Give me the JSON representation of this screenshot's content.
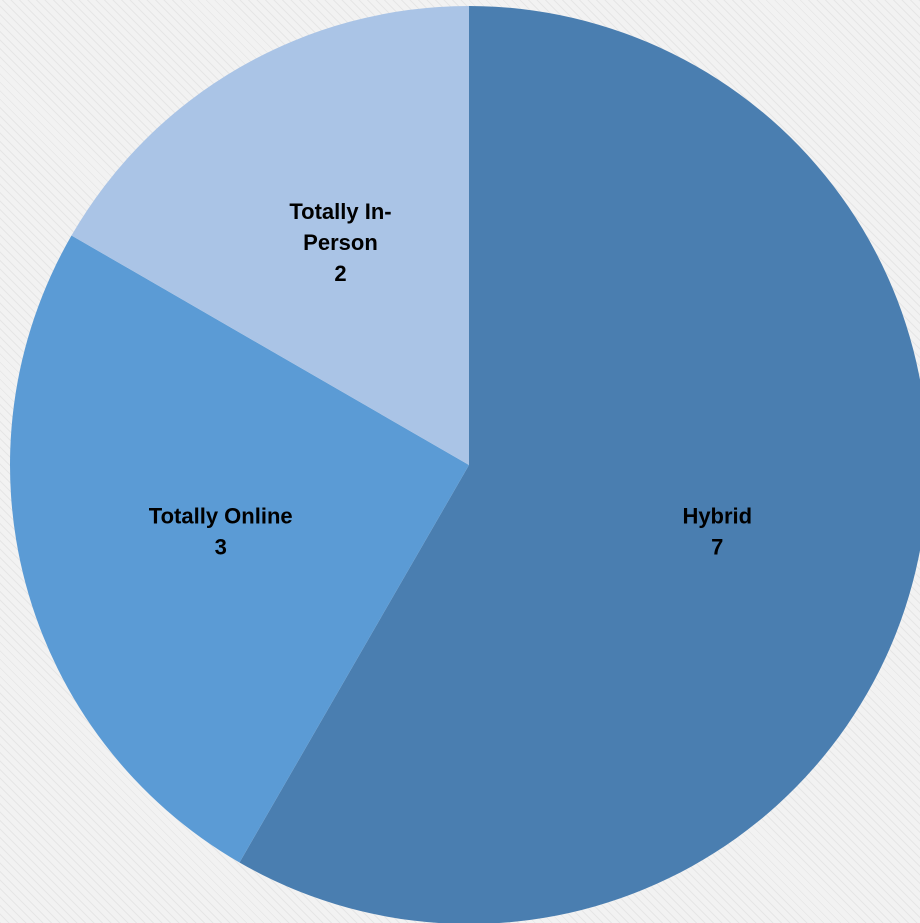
{
  "chart_data": {
    "type": "pie",
    "title": "",
    "slices": [
      {
        "label": "Hybrid",
        "label_lines": [
          "Hybrid"
        ],
        "value": 7,
        "value_text": "7",
        "color": "#4a7eb0"
      },
      {
        "label": "Totally Online",
        "label_lines": [
          "Totally Online"
        ],
        "value": 3,
        "value_text": "3",
        "color": "#5b9bd5"
      },
      {
        "label": "Totally In-Person",
        "label_lines": [
          "Totally In-",
          "Person"
        ],
        "value": 2,
        "value_text": "2",
        "color": "#aac4e6"
      }
    ],
    "start_angle_deg": 0,
    "direction": "clockwise",
    "legend": "none",
    "data_labels": "inside"
  }
}
